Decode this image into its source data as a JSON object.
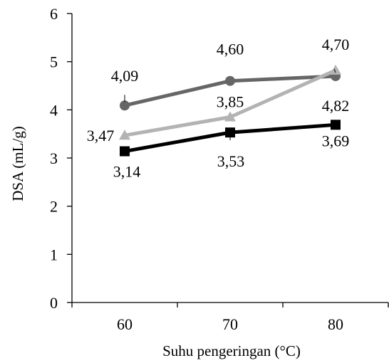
{
  "chart_data": {
    "type": "line",
    "title": "",
    "xlabel": "Suhu pengeringan (°C)",
    "ylabel": "DSA (mL/g)",
    "categories": [
      "60",
      "70",
      "80"
    ],
    "ylim": [
      0,
      6
    ],
    "yticks": [
      "0",
      "1",
      "2",
      "3",
      "4",
      "5",
      "6"
    ],
    "grid": false,
    "legend": "none",
    "series": [
      {
        "marker": "circle",
        "color": "#666666",
        "values": [
          4.09,
          4.6,
          4.7
        ],
        "labels": [
          "4,09",
          "4,60",
          "4,70"
        ]
      },
      {
        "marker": "triangle",
        "color": "#b3b3b3",
        "values": [
          3.47,
          3.85,
          4.82
        ],
        "labels": [
          "3,47",
          "3,85",
          "4,82"
        ]
      },
      {
        "marker": "square",
        "color": "#000000",
        "values": [
          3.14,
          3.53,
          3.69
        ],
        "labels": [
          "3,14",
          "3,53",
          "3,69"
        ]
      }
    ]
  }
}
